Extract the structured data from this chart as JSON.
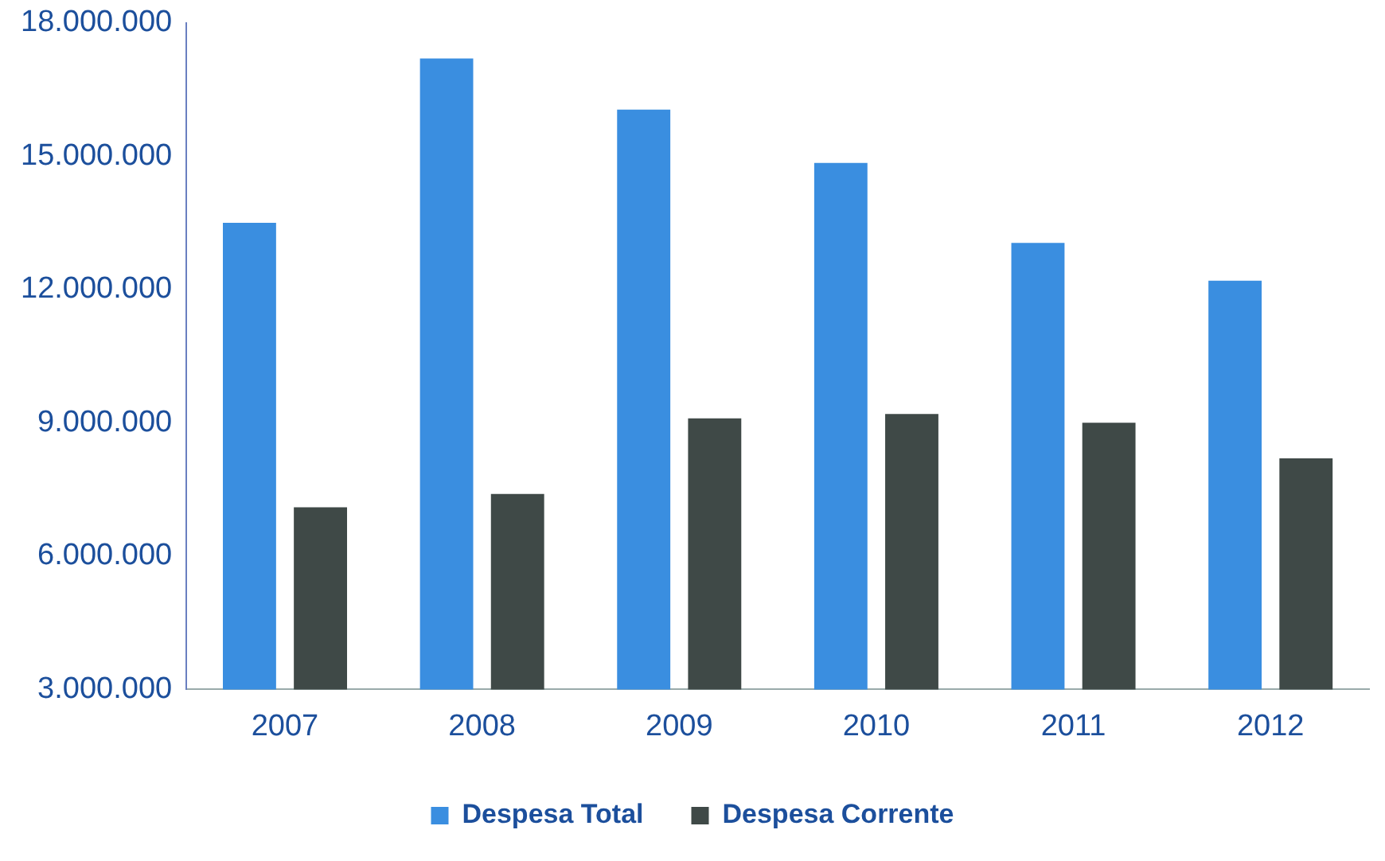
{
  "chart_data": {
    "type": "bar",
    "categories": [
      "2007",
      "2008",
      "2009",
      "2010",
      "2011",
      "2012"
    ],
    "series": [
      {
        "name": "Despesa Total",
        "color": "#3a8ee0",
        "values": [
          13500000,
          17200000,
          16050000,
          14850000,
          13050000,
          12200000
        ]
      },
      {
        "name": "Despesa Corrente",
        "color": "#3f4947",
        "values": [
          7100000,
          7400000,
          9100000,
          9200000,
          9000000,
          8200000
        ]
      }
    ],
    "ylim": [
      3000000,
      18000000
    ],
    "yticks": [
      {
        "value": 3000000,
        "label": "3.000.000"
      },
      {
        "value": 6000000,
        "label": "6.000.000"
      },
      {
        "value": 9000000,
        "label": "9.000.000"
      },
      {
        "value": 12000000,
        "label": "12.000.000"
      },
      {
        "value": 15000000,
        "label": "15.000.000"
      },
      {
        "value": 18000000,
        "label": "18.000.000"
      }
    ],
    "grid": false,
    "legend": "bottom"
  }
}
